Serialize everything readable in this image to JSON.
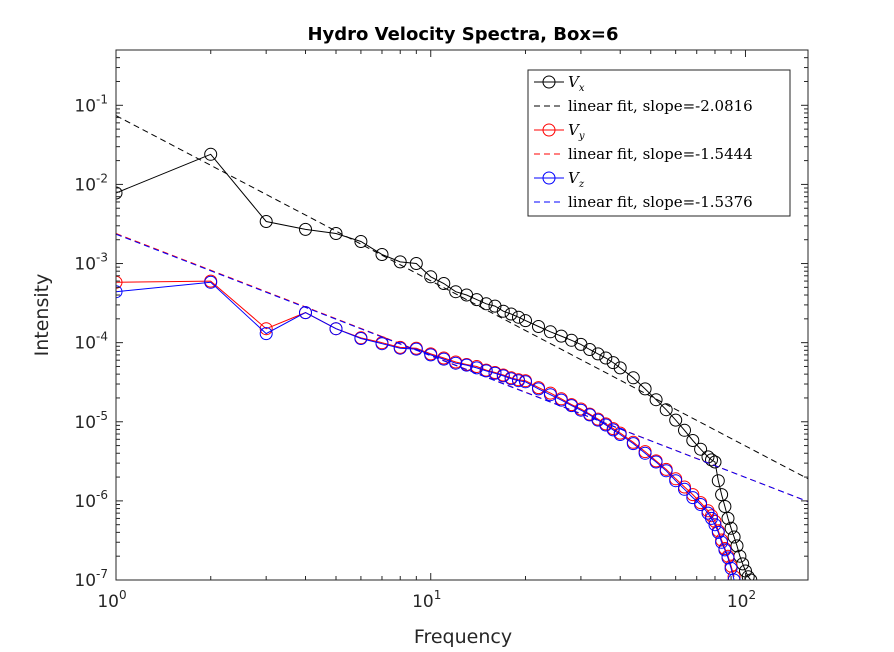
{
  "chart_data": {
    "type": "line",
    "title": "Hydro Velocity Spectra, Box=6",
    "xlabel": "Frequency",
    "ylabel": "Intensity",
    "xscale": "log",
    "yscale": "log",
    "xlim": [
      1,
      158
    ],
    "ylim": [
      1e-07,
      0.5
    ],
    "x_ticks": [
      1,
      10,
      100
    ],
    "y_ticks": [
      1e-07,
      1e-06,
      1e-05,
      0.0001,
      0.001,
      0.01,
      0.1
    ],
    "legend": {
      "position": "top-right",
      "entries": [
        {
          "label": "V",
          "subscript": "x",
          "style": "line-marker",
          "color": "#000000"
        },
        {
          "label": "linear fit, slope=-2.0816",
          "style": "dashed",
          "color": "#000000"
        },
        {
          "label": "V",
          "subscript": "y",
          "style": "line-marker",
          "color": "#ff0000"
        },
        {
          "label": "linear fit, slope=-1.5444",
          "style": "dashed",
          "color": "#ff0000"
        },
        {
          "label": "V",
          "subscript": "z",
          "style": "line-marker",
          "color": "#0000ff"
        },
        {
          "label": "linear fit, slope=-1.5376",
          "style": "dashed",
          "color": "#0000ff"
        }
      ]
    },
    "series": [
      {
        "color": "#000000",
        "style": "line-marker",
        "x": [
          1,
          2,
          3,
          4,
          5,
          6,
          7,
          8,
          9,
          10,
          11,
          12,
          13,
          14,
          15,
          16,
          17,
          18,
          19,
          20,
          22,
          24,
          26,
          28,
          30,
          32,
          34,
          36,
          38,
          40,
          44,
          48,
          52,
          56,
          60,
          64,
          68,
          72,
          76,
          78,
          80,
          82,
          84,
          86,
          88,
          90,
          92,
          94,
          96,
          98,
          100,
          102,
          104
        ],
        "y": [
          0.0078,
          0.024,
          0.0034,
          0.0027,
          0.0024,
          0.0019,
          0.0013,
          0.00105,
          0.001,
          0.00068,
          0.00056,
          0.00044,
          0.0004,
          0.00035,
          0.00031,
          0.00029,
          0.00025,
          0.00023,
          0.00021,
          0.00019,
          0.00016,
          0.000137,
          0.000121,
          0.000107,
          9.5e-05,
          8.2e-05,
          7.2e-05,
          6.4e-05,
          5.6e-05,
          4.8e-05,
          3.6e-05,
          2.6e-05,
          1.9e-05,
          1.42e-05,
          1.05e-05,
          7.8e-06,
          5.8e-06,
          4.5e-06,
          3.6e-06,
          3.3e-06,
          3.1e-06,
          1.8e-06,
          1.2e-06,
          8.5e-07,
          6e-07,
          4.5e-07,
          3.5e-07,
          2.7e-07,
          2e-07,
          1.6e-07,
          1.3e-07,
          1.1e-07,
          1e-07
        ]
      },
      {
        "color": "#000000",
        "style": "dashed",
        "x": [
          1,
          158
        ],
        "y": [
          0.074,
          1.9e-06
        ]
      },
      {
        "color": "#ff0000",
        "style": "line-marker",
        "x": [
          1,
          2,
          3,
          4,
          5,
          6,
          7,
          8,
          9,
          10,
          11,
          12,
          13,
          14,
          15,
          16,
          17,
          18,
          19,
          20,
          22,
          24,
          26,
          28,
          30,
          32,
          34,
          36,
          38,
          40,
          44,
          48,
          52,
          56,
          60,
          64,
          68,
          72,
          76,
          78,
          80,
          82,
          84,
          86,
          88,
          90,
          92
        ],
        "y": [
          0.00058,
          0.0006,
          0.00015,
          0.00024,
          0.00015,
          0.000115,
          0.0001,
          8.7e-05,
          8.5e-05,
          7.2e-05,
          6.4e-05,
          5.7e-05,
          5.3e-05,
          5e-05,
          4.5e-05,
          4.2e-05,
          3.9e-05,
          3.6e-05,
          3.4e-05,
          3.3e-05,
          2.7e-05,
          2.3e-05,
          1.95e-05,
          1.65e-05,
          1.45e-05,
          1.25e-05,
          1.08e-05,
          9.4e-06,
          8.2e-06,
          7.2e-06,
          5.5e-06,
          4.2e-06,
          3.2e-06,
          2.5e-06,
          1.9e-06,
          1.5e-06,
          1.2e-06,
          9.5e-07,
          7.5e-07,
          6.5e-07,
          5.5e-07,
          4.2e-07,
          3.2e-07,
          2.5e-07,
          2e-07,
          1.5e-07,
          1.1e-07
        ]
      },
      {
        "color": "#ff0000",
        "style": "dashed",
        "x": [
          1,
          158
        ],
        "y": [
          0.0024,
          9.8e-07
        ]
      },
      {
        "color": "#0000ff",
        "style": "line-marker",
        "x": [
          1,
          2,
          3,
          4,
          5,
          6,
          7,
          8,
          9,
          10,
          11,
          12,
          13,
          14,
          15,
          16,
          17,
          18,
          19,
          20,
          22,
          24,
          26,
          28,
          30,
          32,
          34,
          36,
          38,
          40,
          44,
          48,
          52,
          56,
          60,
          64,
          68,
          72,
          76,
          78,
          80,
          82,
          84,
          86,
          88,
          90,
          92
        ],
        "y": [
          0.00044,
          0.00058,
          0.00013,
          0.00024,
          0.00015,
          0.000113,
          9.7e-05,
          8.5e-05,
          8.3e-05,
          7e-05,
          6.2e-05,
          5.5e-05,
          5.2e-05,
          4.8e-05,
          4.4e-05,
          4.1e-05,
          3.8e-05,
          3.5e-05,
          3.3e-05,
          3.2e-05,
          2.6e-05,
          2.2e-05,
          1.88e-05,
          1.6e-05,
          1.4e-05,
          1.22e-05,
          1.05e-05,
          9.1e-06,
          7.9e-06,
          6.9e-06,
          5.3e-06,
          4e-06,
          3.1e-06,
          2.4e-06,
          1.8e-06,
          1.4e-06,
          1.1e-06,
          9e-07,
          7e-07,
          6e-07,
          5e-07,
          4e-07,
          3e-07,
          2.4e-07,
          1.9e-07,
          1.4e-07,
          1e-07
        ]
      },
      {
        "color": "#0000ff",
        "style": "dashed",
        "x": [
          1,
          158
        ],
        "y": [
          0.00235,
          9.8e-07
        ]
      }
    ]
  }
}
